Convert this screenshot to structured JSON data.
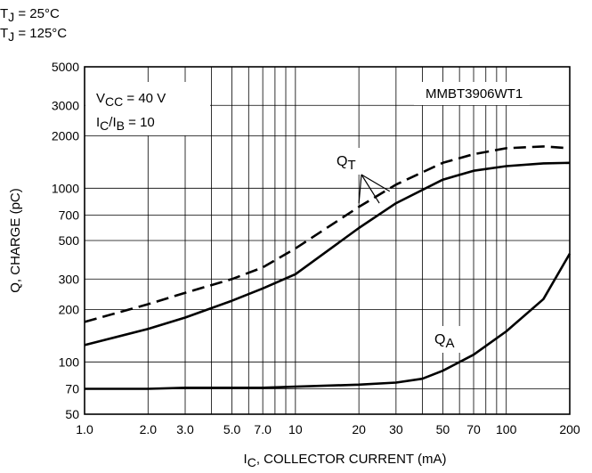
{
  "chart_data": {
    "type": "line",
    "x_scale": "log",
    "y_scale": "log",
    "xlim": [
      1,
      200
    ],
    "ylim": [
      50,
      5000
    ],
    "grid": true,
    "xlabel": {
      "main": "I",
      "sub": "C",
      "rest": ", COLLECTOR CURRENT (mA)"
    },
    "ylabel": "Q, CHARGE (pC)",
    "x_ticks": [
      {
        "v": 1,
        "label": "1.0"
      },
      {
        "v": 2,
        "label": "2.0"
      },
      {
        "v": 3,
        "label": "3.0"
      },
      {
        "v": 5,
        "label": "5.0"
      },
      {
        "v": 7,
        "label": "7.0"
      },
      {
        "v": 10,
        "label": "10"
      },
      {
        "v": 20,
        "label": "20"
      },
      {
        "v": 30,
        "label": "30"
      },
      {
        "v": 50,
        "label": "50"
      },
      {
        "v": 70,
        "label": "70"
      },
      {
        "v": 100,
        "label": "100"
      },
      {
        "v": 200,
        "label": "200"
      }
    ],
    "y_ticks": [
      {
        "v": 50,
        "label": "50"
      },
      {
        "v": 70,
        "label": "70"
      },
      {
        "v": 100,
        "label": "100"
      },
      {
        "v": 200,
        "label": "200"
      },
      {
        "v": 300,
        "label": "300"
      },
      {
        "v": 500,
        "label": "500"
      },
      {
        "v": 700,
        "label": "700"
      },
      {
        "v": 1000,
        "label": "1000"
      },
      {
        "v": 2000,
        "label": "2000"
      },
      {
        "v": 3000,
        "label": "3000"
      },
      {
        "v": 5000,
        "label": "5000"
      }
    ],
    "legend_lines": [
      {
        "sym": "T",
        "sub": "J",
        "rest": " = 25°C"
      },
      {
        "sym": "T",
        "sub": "J",
        "rest": " = 125°C"
      }
    ],
    "conditions": [
      {
        "a": "V",
        "asub": "CC",
        "b": " = 40 V",
        "bsub": "",
        "c": ""
      },
      {
        "a": "I",
        "asub": "C",
        "b": "/I",
        "bsub": "B",
        "c": " = 10"
      }
    ],
    "device": "MMBT3906WT1",
    "series": [
      {
        "label_main": "Q",
        "label_sub": "T",
        "style": "solid",
        "x": [
          1,
          2,
          3,
          5,
          7,
          10,
          20,
          30,
          50,
          70,
          100,
          150,
          200
        ],
        "y": [
          125,
          155,
          180,
          225,
          265,
          320,
          590,
          820,
          1120,
          1260,
          1340,
          1390,
          1400
        ]
      },
      {
        "label_main": "Q",
        "label_sub": "T",
        "style": "dashed",
        "x": [
          1,
          2,
          3,
          5,
          7,
          10,
          20,
          30,
          50,
          70,
          100,
          150,
          200
        ],
        "y": [
          170,
          215,
          250,
          300,
          350,
          450,
          780,
          1050,
          1400,
          1570,
          1700,
          1740,
          1700
        ]
      },
      {
        "label_main": "Q",
        "label_sub": "A",
        "style": "solid",
        "x": [
          1,
          2,
          3,
          5,
          7,
          10,
          20,
          30,
          40,
          50,
          70,
          100,
          150,
          200
        ],
        "y": [
          70,
          70,
          71,
          71,
          71,
          72,
          74,
          76,
          80,
          89,
          110,
          150,
          230,
          420
        ]
      }
    ]
  }
}
